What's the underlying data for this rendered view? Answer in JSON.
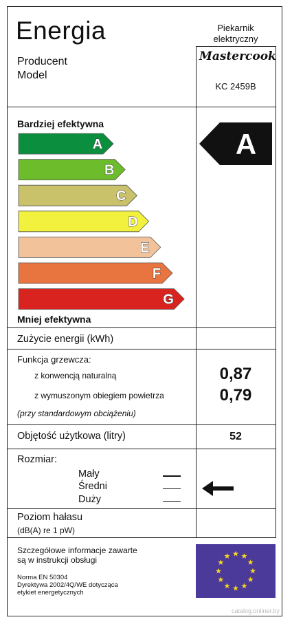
{
  "header": {
    "title": "Energia",
    "appliance_line1": "Piekarnik",
    "appliance_line2": "elektryczny",
    "producer_label": "Producent",
    "model_label": "Model",
    "brand": "Mastercook",
    "model_number": "KC 2459B"
  },
  "efficiency": {
    "more_efficient_label": "Bardziej efektywna",
    "less_efficient_label": "Mniej efektywna",
    "classes": [
      {
        "letter": "A",
        "color": "#0b8f3f"
      },
      {
        "letter": "B",
        "color": "#6cbc2b"
      },
      {
        "letter": "C",
        "color": "#c9c26a"
      },
      {
        "letter": "D",
        "color": "#f2f23e"
      },
      {
        "letter": "E",
        "color": "#f2c39a"
      },
      {
        "letter": "F",
        "color": "#e8743f"
      },
      {
        "letter": "G",
        "color": "#d9231f"
      }
    ],
    "rating": "A",
    "rating_color": "#111111"
  },
  "energy": {
    "consumption_label": "Zużycie energii (kWh)",
    "heating_function_label": "Funkcja grzewcza:",
    "conventional_label": "z konwencją naturalną",
    "conventional_value": "0,87",
    "forced_label": "z wymuszonym obiegiem powietrza",
    "forced_value": "0,79",
    "standard_load_note": "(przy standardowym obciążeniu)"
  },
  "volume": {
    "label": "Objętość użytkowa (litry)",
    "value": "52"
  },
  "size": {
    "label": "Rozmiar:",
    "options": [
      "Mały",
      "Średni",
      "Duży"
    ],
    "selected": "Średni"
  },
  "noise": {
    "label": "Poziom hałasu",
    "unit": "(dB(A) re 1 pW)"
  },
  "footer": {
    "info_line1": "Szczegółowe informacje zawarte",
    "info_line2": "są w instrukcji obsługi",
    "norm_line1": "Norma EN 50304",
    "norm_line2": "Dyrektywa 2002/4Q/WE dotycząca",
    "norm_line3": "etykiet energetycznych",
    "eu_flag_color": "#4b3a9a",
    "eu_star_color": "#f5d91b"
  },
  "watermark": "catalog.onliner.by"
}
